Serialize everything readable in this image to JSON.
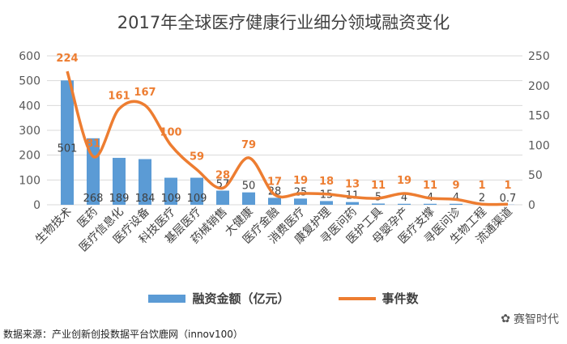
{
  "chart_data": {
    "type": "bar",
    "title": "2017年全球医疗健康行业细分领域融资变化",
    "categories": [
      "生物技术",
      "医药",
      "医疗信息化",
      "医疗设备",
      "科技医疗",
      "基层医疗",
      "药械销售",
      "大健康",
      "医疗金融",
      "消费医疗",
      "康复护理",
      "寻医问药",
      "医护工具",
      "母婴孕产",
      "医疗支撑",
      "寻医问诊",
      "生物工程",
      "流通渠道"
    ],
    "series": [
      {
        "name": "融资金额（亿元）",
        "type": "bar",
        "axis": "left",
        "color": "#5b9bd5",
        "values": [
          501,
          268,
          189,
          184,
          109,
          109,
          57,
          50,
          28,
          25,
          15,
          11,
          5,
          4,
          4,
          4,
          2,
          0.7
        ]
      },
      {
        "name": "事件数",
        "type": "line",
        "axis": "right",
        "color": "#ed7d31",
        "values": [
          224,
          81,
          161,
          167,
          100,
          59,
          28,
          79,
          17,
          19,
          18,
          13,
          11,
          19,
          11,
          9,
          1,
          1
        ]
      }
    ],
    "y_left": {
      "ylim": [
        0,
        600
      ],
      "ticks": [
        0,
        100,
        200,
        300,
        400,
        500,
        600
      ]
    },
    "y_right": {
      "ylim": [
        0,
        250
      ],
      "ticks": [
        0,
        50,
        100,
        150,
        200,
        250
      ]
    },
    "grid": true,
    "legend": "bottom"
  },
  "source": "数据来源：产业创新创投数据平台饮鹿网（innov100）",
  "watermark": "赛智时代"
}
